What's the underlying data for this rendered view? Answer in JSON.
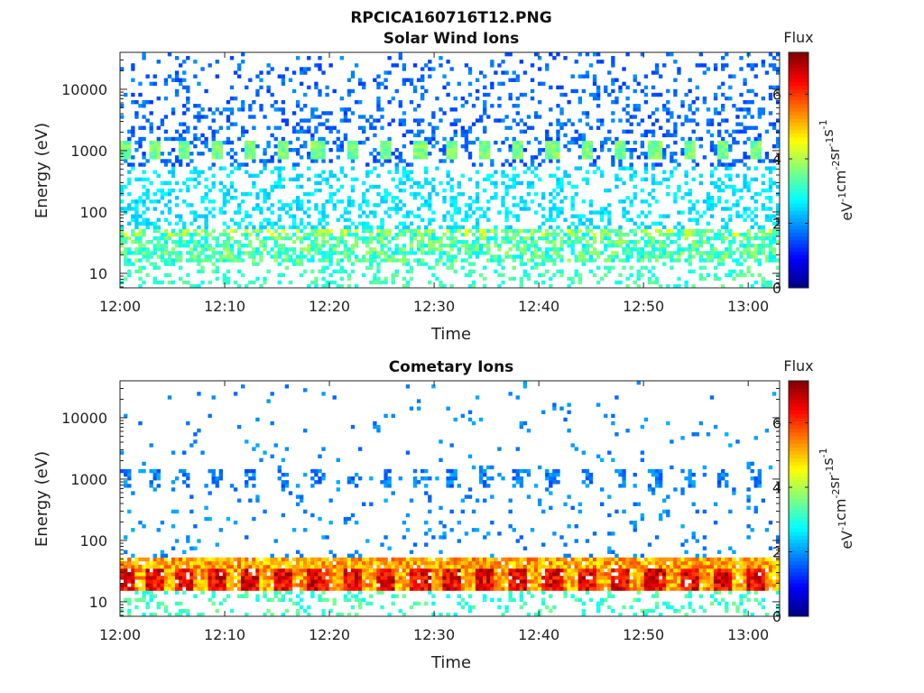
{
  "figure_title": "RPCICA160716T12.PNG",
  "colormap": [
    "#00007f",
    "#0000ff",
    "#007fff",
    "#00ffff",
    "#7fff7f",
    "#ffff00",
    "#ff7f00",
    "#ff0000",
    "#7f0000"
  ],
  "colorbar": {
    "title": "Flux",
    "unit_base": "eV",
    "unit_parts": [
      "eV",
      "-1",
      "cm",
      "-2",
      "sr",
      "-1",
      "s",
      "-1"
    ],
    "range": [
      0,
      7.3
    ],
    "ticks": [
      "0",
      "2",
      "4",
      "6"
    ]
  },
  "chart_data": [
    {
      "type": "heatmap",
      "title": "Solar Wind Ions",
      "xlabel": "Time",
      "ylabel": "Energy (eV)",
      "x_ticks": [
        "12:00",
        "12:10",
        "12:20",
        "12:30",
        "12:40",
        "12:50",
        "13:00"
      ],
      "x_tick_minutes": [
        0,
        10,
        20,
        30,
        40,
        50,
        60
      ],
      "xlim_minutes": [
        0,
        63
      ],
      "y_ticks": [
        "10",
        "100",
        "1000",
        "10000"
      ],
      "y_tick_values": [
        10,
        100,
        1000,
        10000
      ],
      "ylim": [
        5.8,
        40000
      ],
      "y_scale": "log",
      "features": {
        "bursts_center_eV": 1000,
        "burst_minutes": [
          0.5,
          3.2,
          6.1,
          9.2,
          12.4,
          15.6,
          18.9,
          22.1,
          25.4,
          28.7,
          31.8,
          34.9,
          38.1,
          41.3,
          44.6,
          47.8,
          51.1,
          54.4,
          57.6,
          60.7
        ],
        "burst_level": 3.6,
        "low_band_eV": [
          15,
          55
        ],
        "low_band_level": 3.3,
        "sparse_level": 1.8
      }
    },
    {
      "type": "heatmap",
      "title": "Cometary Ions",
      "xlabel": "Time",
      "ylabel": "Energy (eV)",
      "x_ticks": [
        "12:00",
        "12:10",
        "12:20",
        "12:30",
        "12:40",
        "12:50",
        "13:00"
      ],
      "x_tick_minutes": [
        0,
        10,
        20,
        30,
        40,
        50,
        60
      ],
      "xlim_minutes": [
        0,
        63
      ],
      "y_ticks": [
        "10",
        "100",
        "1000",
        "10000"
      ],
      "y_tick_values": [
        10,
        100,
        1000,
        10000
      ],
      "ylim": [
        5.8,
        40000
      ],
      "y_scale": "log",
      "features": {
        "bursts_center_eV": 1000,
        "burst_minutes": [
          0.5,
          3.2,
          6.1,
          9.2,
          12.4,
          15.6,
          18.9,
          22.1,
          25.4,
          28.7,
          31.8,
          34.9,
          38.1,
          41.3,
          44.6,
          47.8,
          51.1,
          54.4,
          57.6,
          60.7
        ],
        "burst_level": 1.8,
        "low_band_eV": [
          15,
          55
        ],
        "low_band_level": 5.2,
        "sparse_level": 1.8
      }
    }
  ]
}
